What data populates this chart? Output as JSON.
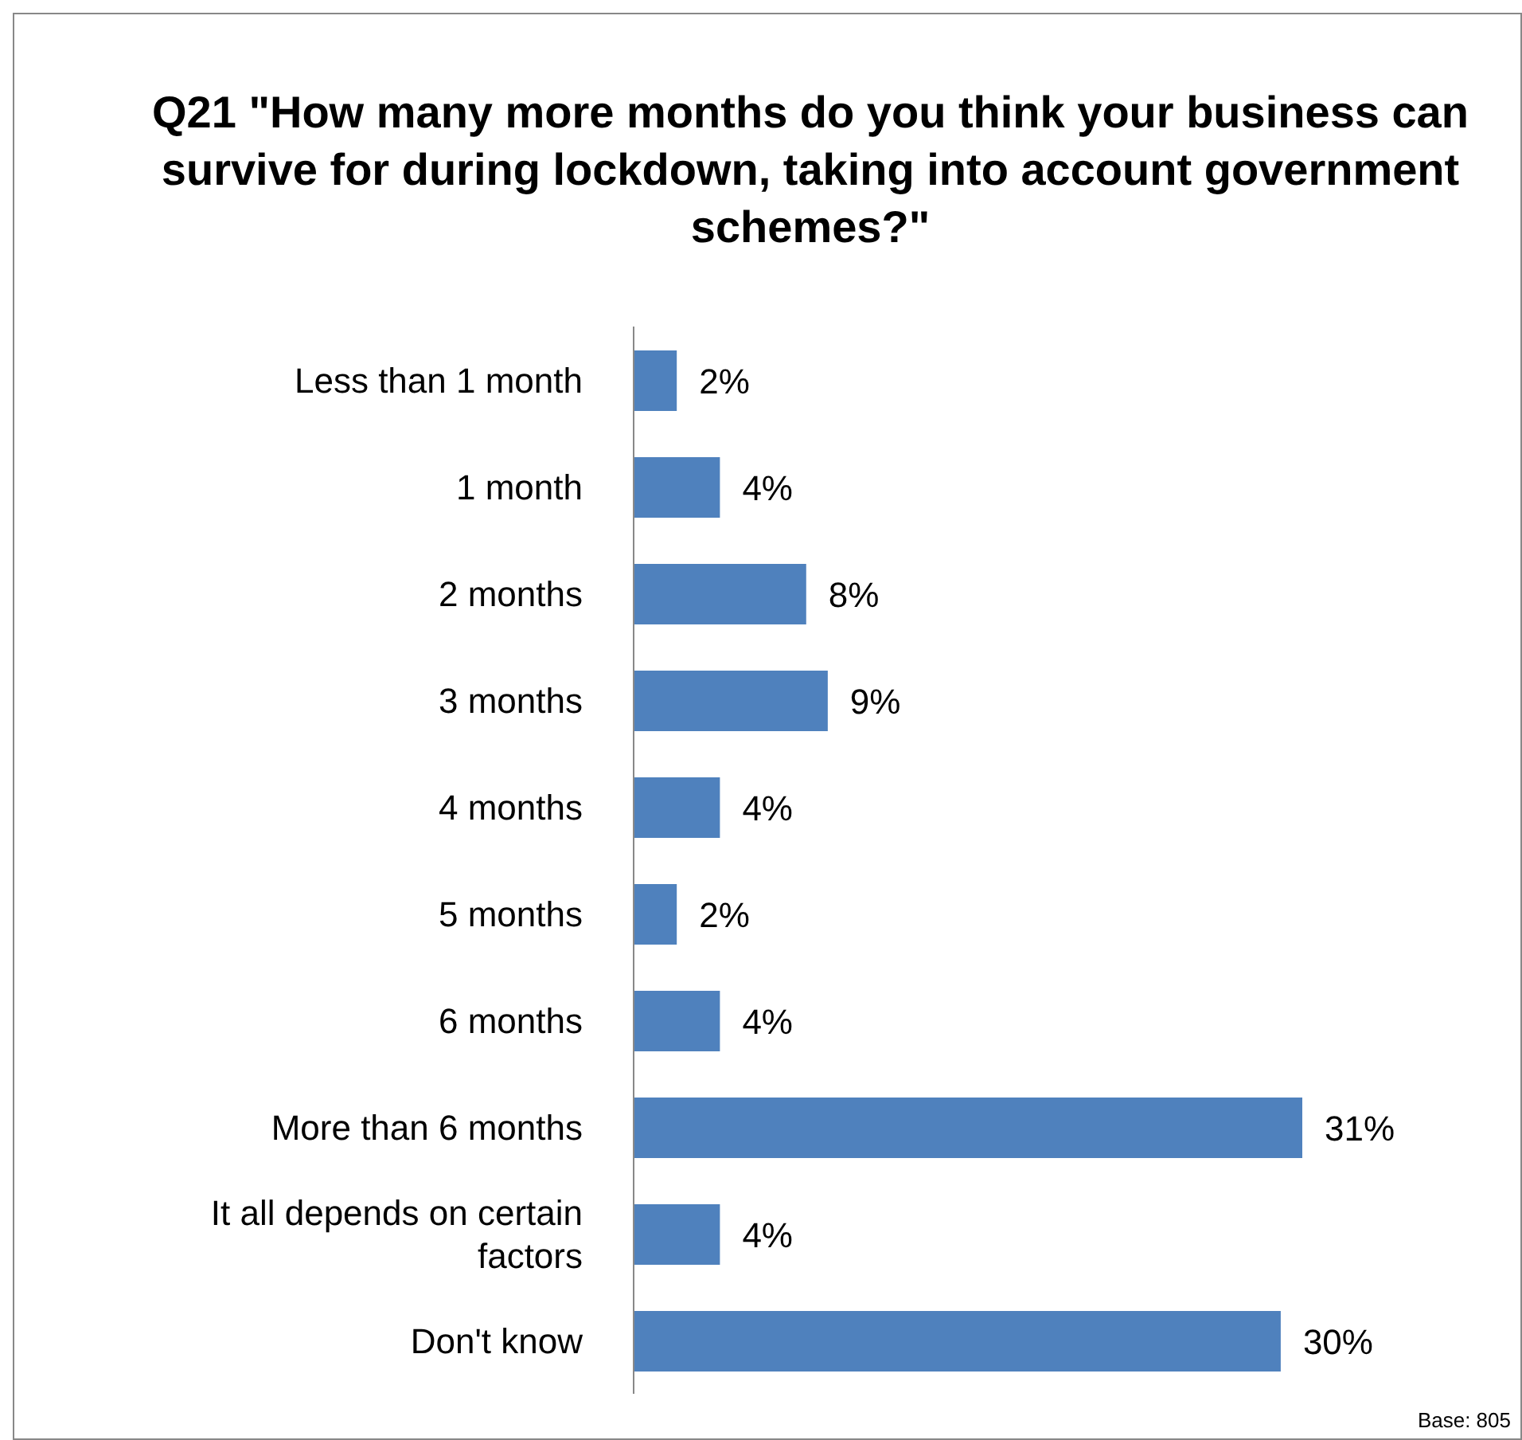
{
  "chart_data": {
    "type": "bar",
    "orientation": "horizontal",
    "title": "Q21 \"How many more months do you think your business can survive for during lockdown, taking into account government schemes?\"",
    "categories": [
      "Less than 1 month",
      "1 month",
      "2 months",
      "3 months",
      "4 months",
      "5 months",
      "6 months",
      "More than 6 months",
      "It all depends on certain factors",
      "Don't know"
    ],
    "values": [
      2,
      4,
      8,
      9,
      4,
      2,
      4,
      31,
      4,
      30
    ],
    "value_labels": [
      "2%",
      "4%",
      "8%",
      "9%",
      "4%",
      "2%",
      "4%",
      "31%",
      "4%",
      "30%"
    ],
    "color": "#4f81bd",
    "annotations": [
      "Base: 805"
    ]
  }
}
